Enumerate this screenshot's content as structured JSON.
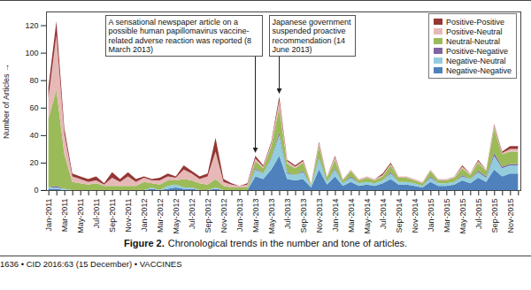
{
  "chart_data": {
    "type": "area",
    "stacked": true,
    "grid": false,
    "legend": "upper right",
    "y_label": "Number of Articles",
    "figure_label": "Figure 2.",
    "caption": "Chronological trends in the number and tone of articles.",
    "footer": "1636 • CID 2016:63 (15 December) • VACCINES",
    "annotations": [
      "A sensational newspaper article on a possible human papillomavirus vaccine-related adverse reaction was reported (8 March 2013)",
      "Japanese government suspended proactive recommendation (14 June 2013)"
    ],
    "ylim": [
      0,
      130
    ],
    "yticks": [
      0,
      20,
      40,
      60,
      80,
      100,
      120
    ],
    "categories": [
      "Jan-2011",
      null,
      "Mar-2011",
      null,
      "May-2011",
      null,
      "Jul-2011",
      null,
      "Sep-2011",
      null,
      "Nov-2011",
      null,
      "Jan-2012",
      null,
      "Mar-2012",
      null,
      "May-2012",
      null,
      "Jul-2012",
      null,
      "Sep-2012",
      null,
      "Nov-2012",
      null,
      "Jan-2013",
      null,
      "Mar-2013",
      null,
      "May-2013",
      null,
      "Jul-2013",
      null,
      "Sep-2013",
      null,
      "Nov-2013",
      null,
      "Jan-2014",
      null,
      "Mar-2014",
      null,
      "May-2014",
      null,
      "Jul-2014",
      null,
      "Sep-2014",
      null,
      "Nov-2014",
      null,
      "Jan-2015",
      null,
      "Mar-2015",
      null,
      "May-2015",
      null,
      "Jul-2015",
      null,
      "Sep-2015",
      null,
      "Nov-2015",
      null
    ],
    "series": [
      {
        "name": "Negative-Negative",
        "color": "#4F81BD",
        "values": [
          1,
          1,
          0,
          0,
          0,
          0,
          0,
          0,
          0,
          0,
          0,
          0,
          0,
          1,
          0,
          1,
          2,
          1,
          1,
          0,
          0,
          1,
          0,
          0,
          0,
          0,
          10,
          8,
          15,
          25,
          8,
          7,
          8,
          2,
          15,
          4,
          10,
          3,
          6,
          3,
          4,
          3,
          5,
          8,
          4,
          4,
          3,
          2,
          6,
          3,
          3,
          4,
          7,
          5,
          9,
          6,
          15,
          10,
          12,
          12
        ]
      },
      {
        "name": "Negative-Neutral",
        "color": "#93CDDD",
        "values": [
          1,
          1,
          1,
          0,
          0,
          0,
          0,
          0,
          0,
          0,
          0,
          0,
          0,
          1,
          0,
          2,
          2,
          1,
          1,
          0,
          0,
          1,
          0,
          0,
          0,
          0,
          5,
          4,
          8,
          15,
          4,
          4,
          5,
          1,
          8,
          2,
          5,
          2,
          3,
          2,
          2,
          2,
          2,
          4,
          2,
          2,
          2,
          1,
          3,
          2,
          2,
          2,
          3,
          3,
          4,
          3,
          10,
          6,
          6,
          6
        ]
      },
      {
        "name": "Positive-Negative",
        "color": "#8064A2",
        "values": [
          0,
          1,
          0,
          0,
          0,
          0,
          0,
          0,
          0,
          0,
          0,
          0,
          0,
          0,
          0,
          0,
          0,
          0,
          0,
          0,
          0,
          0,
          0,
          0,
          0,
          0,
          1,
          0,
          1,
          2,
          1,
          0,
          1,
          0,
          1,
          0,
          1,
          0,
          1,
          0,
          0,
          0,
          0,
          1,
          0,
          0,
          0,
          0,
          1,
          0,
          0,
          0,
          1,
          0,
          1,
          1,
          2,
          1,
          1,
          1
        ]
      },
      {
        "name": "Neutral-Neutral",
        "color": "#9BBB59",
        "values": [
          50,
          70,
          25,
          6,
          5,
          4,
          5,
          3,
          3,
          3,
          3,
          3,
          6,
          3,
          4,
          4,
          3,
          6,
          5,
          5,
          4,
          6,
          3,
          2,
          2,
          2,
          5,
          4,
          8,
          18,
          6,
          5,
          6,
          1,
          8,
          3,
          6,
          2,
          4,
          2,
          3,
          2,
          3,
          5,
          3,
          3,
          2,
          2,
          4,
          2,
          2,
          3,
          5,
          3,
          6,
          4,
          18,
          9,
          9,
          9
        ]
      },
      {
        "name": "Positive-Neutral",
        "color": "#E6B9B8",
        "values": [
          15,
          40,
          15,
          4,
          3,
          2,
          2,
          1,
          6,
          3,
          7,
          3,
          3,
          2,
          3,
          3,
          2,
          7,
          5,
          3,
          6,
          20,
          3,
          2,
          1,
          2,
          2,
          1,
          2,
          5,
          2,
          1,
          1,
          1,
          2,
          1,
          2,
          1,
          1,
          1,
          1,
          1,
          1,
          1,
          1,
          1,
          1,
          1,
          1,
          1,
          1,
          1,
          1,
          1,
          1,
          1,
          2,
          1,
          2,
          2
        ]
      },
      {
        "name": "Positive-Positive",
        "color": "#953735",
        "values": [
          8,
          10,
          4,
          2,
          2,
          2,
          3,
          1,
          4,
          2,
          3,
          2,
          1,
          1,
          2,
          2,
          1,
          3,
          2,
          2,
          2,
          10,
          2,
          1,
          0,
          1,
          2,
          1,
          1,
          3,
          1,
          1,
          1,
          0,
          1,
          0,
          1,
          0,
          0,
          0,
          0,
          0,
          1,
          1,
          0,
          0,
          0,
          0,
          0,
          0,
          0,
          0,
          1,
          0,
          1,
          0,
          1,
          1,
          2,
          2
        ]
      }
    ]
  }
}
